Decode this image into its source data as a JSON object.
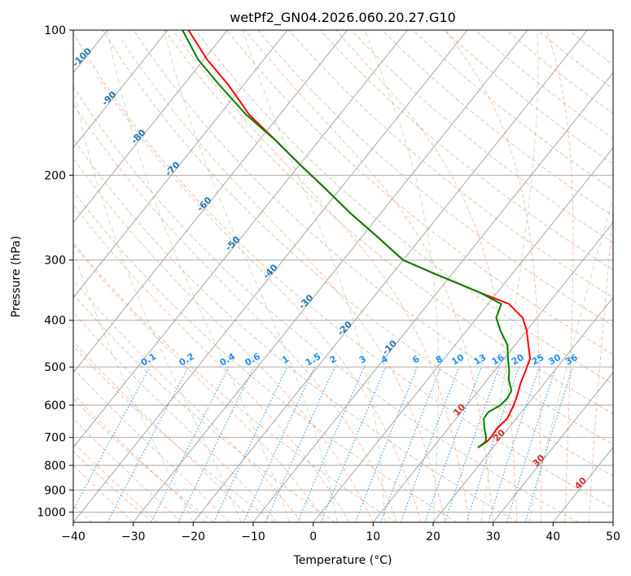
{
  "chart_data": {
    "type": "line",
    "subtype": "skew-t log-p diagram",
    "title": "wetPf2_GN04.2026.060.20.27.G10",
    "xlabel": "Temperature (°C)",
    "ylabel": "Pressure (hPa)",
    "xlim": [
      -40,
      50
    ],
    "ylim": [
      1050,
      100
    ],
    "x_ticks": [
      -40,
      -30,
      -20,
      -10,
      0,
      10,
      20,
      30,
      40,
      50
    ],
    "y_ticks": [
      100,
      200,
      300,
      400,
      500,
      600,
      700,
      800,
      900,
      1000
    ],
    "y_tick_labels": [
      "100",
      "200",
      "300",
      "400",
      "500",
      "600",
      "700",
      "800",
      "900",
      "1000"
    ],
    "x_tick_labels": [
      "−40",
      "−30",
      "−20",
      "−10",
      "0",
      "10",
      "20",
      "30",
      "40",
      "50"
    ],
    "isotherm_labels": [
      "-100",
      "-90",
      "-80",
      "-70",
      "-60",
      "-50",
      "-40",
      "-30",
      "-20",
      "-10"
    ],
    "mixing_ratio_labels": [
      "0.1",
      "0.2",
      "0.4",
      "0.6",
      "1",
      "1.5",
      "2",
      "3",
      "4",
      "6",
      "8",
      "10",
      "13",
      "16",
      "20",
      "25",
      "30",
      "36"
    ],
    "moist_adiabat_labels": [
      "10",
      "20",
      "30",
      "40"
    ],
    "series": [
      {
        "name": "Temperature",
        "color": "#ff0000",
        "pressure": [
          735,
          715,
          700,
          670,
          640,
          600,
          570,
          540,
          510,
          480,
          450,
          420,
          395,
          370,
          350,
          320,
          300,
          270,
          240,
          210,
          190,
          170,
          150,
          130,
          115,
          100
        ],
        "temperature": [
          17.5,
          18.2,
          18.3,
          18.1,
          18.5,
          17.8,
          17.0,
          16.0,
          15.2,
          14.3,
          12.2,
          10.0,
          7.6,
          3.5,
          -3.0,
          -13.0,
          -20.0,
          -27.0,
          -35.0,
          -43.5,
          -50.0,
          -57.0,
          -65.0,
          -72.5,
          -79.5,
          -86.5
        ]
      },
      {
        "name": "Dewpoint",
        "color": "#008000",
        "pressure": [
          735,
          715,
          700,
          670,
          640,
          620,
          600,
          580,
          560,
          530,
          510,
          480,
          450,
          420,
          395,
          370,
          350,
          320,
          300,
          270,
          240,
          210,
          190,
          170,
          150,
          130,
          115,
          100
        ],
        "temperature": [
          17.5,
          18.0,
          17.5,
          16.0,
          14.6,
          14.5,
          15.6,
          15.8,
          15.5,
          13.5,
          12.5,
          10.6,
          8.7,
          5.6,
          3.2,
          2.2,
          -3.0,
          -13.0,
          -20.0,
          -27.0,
          -35.0,
          -43.5,
          -50.0,
          -57.0,
          -65.5,
          -74.0,
          -81.0,
          -87.5
        ]
      }
    ]
  }
}
